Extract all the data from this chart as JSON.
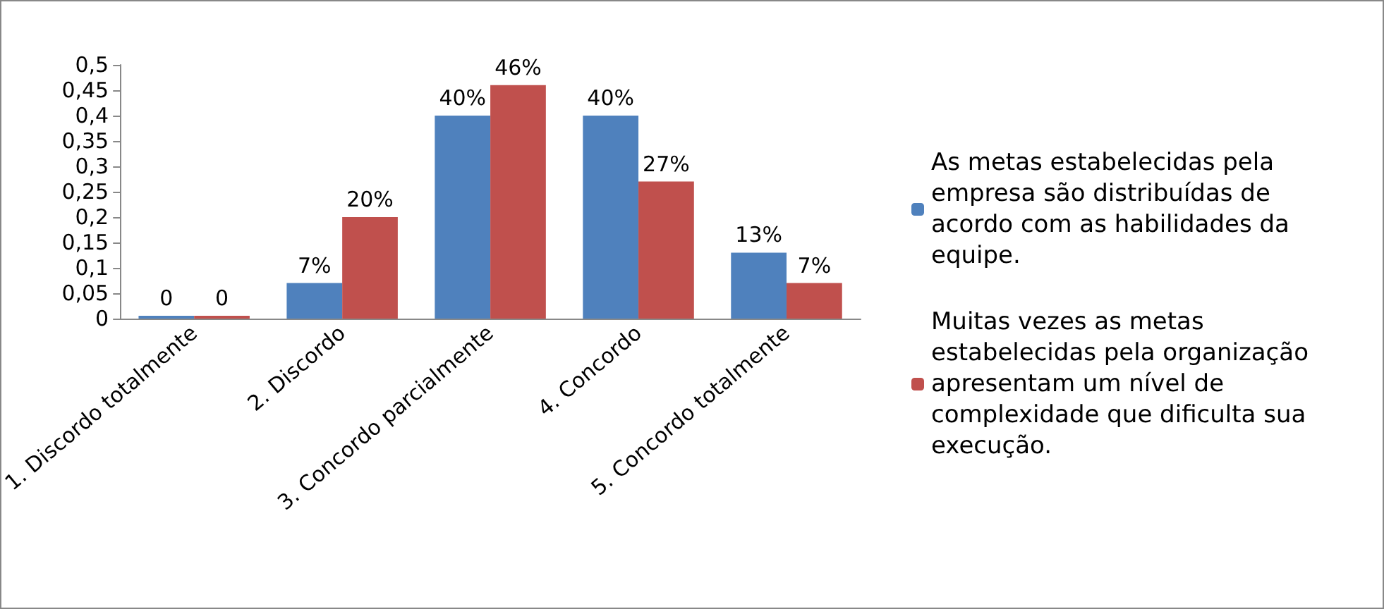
{
  "chart_data": {
    "type": "bar",
    "categories": [
      "1. Discordo totalmente",
      "2. Discordo",
      "3. Concordo parcialmente",
      "4. Concordo",
      "5. Concordo totalmente"
    ],
    "series": [
      {
        "name": "As metas estabelecidas pela empresa são distribuídas de acordo com as habilidades da equipe.",
        "color": "#4f81bd",
        "values": [
          0,
          0.07,
          0.4,
          0.4,
          0.13
        ],
        "value_labels": [
          "0",
          "7%",
          "40%",
          "40%",
          "13%"
        ]
      },
      {
        "name": "Muitas vezes as metas estabelecidas pela organização apresentam um nível de complexidade que dificulta sua execução.",
        "color": "#c0504d",
        "values": [
          0,
          0.2,
          0.46,
          0.27,
          0.07
        ],
        "value_labels": [
          "0",
          "20%",
          "46%",
          "27%",
          "7%"
        ]
      }
    ],
    "ylim": [
      0,
      0.5
    ],
    "yticks": [
      {
        "value": 0,
        "label": "0"
      },
      {
        "value": 0.05,
        "label": "0,05"
      },
      {
        "value": 0.1,
        "label": "0,1"
      },
      {
        "value": 0.15,
        "label": "0,15"
      },
      {
        "value": 0.2,
        "label": "0,2"
      },
      {
        "value": 0.25,
        "label": "0,25"
      },
      {
        "value": 0.3,
        "label": "0,3"
      },
      {
        "value": 0.35,
        "label": "0,35"
      },
      {
        "value": 0.4,
        "label": "0,4"
      },
      {
        "value": 0.45,
        "label": "0,45"
      },
      {
        "value": 0.5,
        "label": "0,5"
      }
    ],
    "grid": false,
    "legend": "right"
  }
}
